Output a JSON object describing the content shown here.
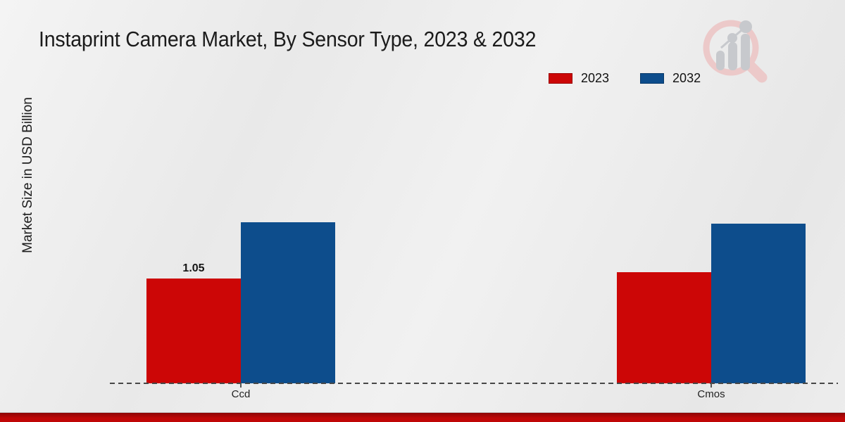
{
  "chart_data": {
    "type": "bar",
    "title": "Instaprint Camera Market, By Sensor Type, 2023 & 2032",
    "ylabel": "Market Size in USD Billion",
    "xlabel": "",
    "categories": [
      "Ccd",
      "Cmos"
    ],
    "series": [
      {
        "name": "2023",
        "color": "#cc0606",
        "values": [
          1.05,
          1.11
        ]
      },
      {
        "name": "2032",
        "color": "#0d4d8c",
        "values": [
          1.61,
          1.6
        ]
      }
    ],
    "value_labels": [
      {
        "category": "Ccd",
        "series": "2023",
        "text": "1.05"
      }
    ],
    "ylim": [
      0,
      2.2
    ],
    "grid": false,
    "legend_position": "top-right",
    "baseline_style": "dashed"
  },
  "branding": {
    "watermark_icon": "magnifier-bar-chart-logo",
    "accent_bar_color": "#c00707",
    "watermark_ring_color": "#ecc9c9",
    "watermark_bar_color": "#c7c9cd"
  }
}
